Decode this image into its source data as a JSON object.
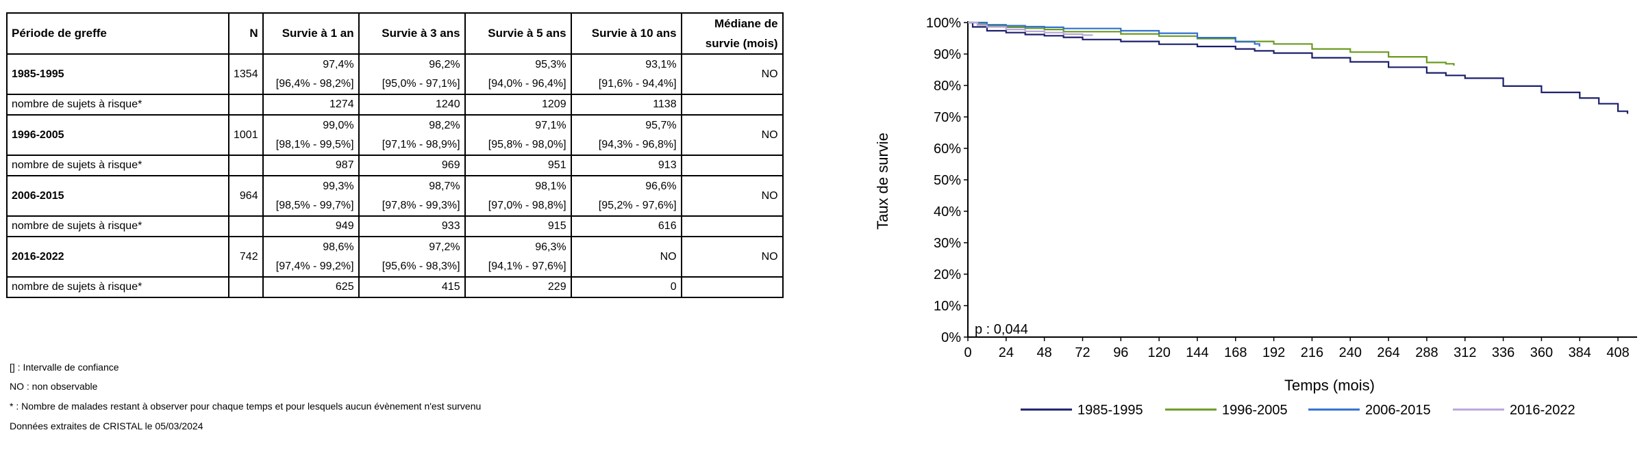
{
  "table": {
    "headers": [
      "Période de greffe",
      "N",
      "Survie à 1 an",
      "Survie à 3 ans",
      "Survie à 5 ans",
      "Survie à 10 ans"
    ],
    "median_header_line1": "Médiane de",
    "median_header_line2": "survie (mois)",
    "risk_label": "nombre de sujets à risque*",
    "groups": [
      {
        "period": "1985-1995",
        "n": "1354",
        "survival": [
          {
            "value": "97,4%",
            "ci": "[96,4% - 98,2%]"
          },
          {
            "value": "96,2%",
            "ci": "[95,0% - 97,1%]"
          },
          {
            "value": "95,3%",
            "ci": "[94,0% - 96,4%]"
          },
          {
            "value": "93,1%",
            "ci": "[91,6% - 94,4%]"
          }
        ],
        "median": "NO",
        "at_risk": [
          "1274",
          "1240",
          "1209",
          "1138"
        ]
      },
      {
        "period": "1996-2005",
        "n": "1001",
        "survival": [
          {
            "value": "99,0%",
            "ci": "[98,1% - 99,5%]"
          },
          {
            "value": "98,2%",
            "ci": "[97,1% - 98,9%]"
          },
          {
            "value": "97,1%",
            "ci": "[95,8% - 98,0%]"
          },
          {
            "value": "95,7%",
            "ci": "[94,3% - 96,8%]"
          }
        ],
        "median": "NO",
        "at_risk": [
          "987",
          "969",
          "951",
          "913"
        ]
      },
      {
        "period": "2006-2015",
        "n": "964",
        "survival": [
          {
            "value": "99,3%",
            "ci": "[98,5% - 99,7%]"
          },
          {
            "value": "98,7%",
            "ci": "[97,8% - 99,3%]"
          },
          {
            "value": "98,1%",
            "ci": "[97,0% - 98,8%]"
          },
          {
            "value": "96,6%",
            "ci": "[95,2% - 97,6%]"
          }
        ],
        "median": "NO",
        "at_risk": [
          "949",
          "933",
          "915",
          "616"
        ]
      },
      {
        "period": "2016-2022",
        "n": "742",
        "survival": [
          {
            "value": "98,6%",
            "ci": "[97,4% - 99,2%]"
          },
          {
            "value": "97,2%",
            "ci": "[95,6% - 98,3%]"
          },
          {
            "value": "96,3%",
            "ci": "[94,1% - 97,6%]"
          },
          {
            "value": "NO",
            "ci": ""
          }
        ],
        "median": "NO",
        "at_risk": [
          "625",
          "415",
          "229",
          "0"
        ]
      }
    ]
  },
  "footnotes": [
    "[] : Intervalle de confiance",
    "NO : non observable",
    "* : Nombre de malades restant à observer pour chaque temps et pour lesquels aucun évènement n'est survenu",
    "Données extraites de CRISTAL le 05/03/2024"
  ],
  "chart_data": {
    "type": "line",
    "xlabel": "Temps (mois)",
    "ylabel": "Taux de survie",
    "xlim": [
      0,
      420
    ],
    "ylim": [
      0,
      100
    ],
    "xticks": [
      0,
      24,
      48,
      72,
      96,
      120,
      144,
      168,
      192,
      216,
      240,
      264,
      288,
      312,
      336,
      360,
      384,
      408
    ],
    "yticks": [
      0,
      10,
      20,
      30,
      40,
      50,
      60,
      70,
      80,
      90,
      100
    ],
    "ytick_labels": [
      "0%",
      "10%",
      "20%",
      "30%",
      "40%",
      "50%",
      "60%",
      "70%",
      "80%",
      "90%",
      "100%"
    ],
    "annotation": "p : 0,044",
    "legend_position": "bottom",
    "series": [
      {
        "name": "1985-1995",
        "color": "#1b1f6b",
        "points": [
          [
            0,
            100
          ],
          [
            3,
            98.6
          ],
          [
            12,
            97.4
          ],
          [
            24,
            96.8
          ],
          [
            36,
            96.2
          ],
          [
            48,
            95.8
          ],
          [
            60,
            95.3
          ],
          [
            72,
            94.6
          ],
          [
            96,
            94.0
          ],
          [
            120,
            93.1
          ],
          [
            144,
            92.4
          ],
          [
            168,
            91.6
          ],
          [
            180,
            91.0
          ],
          [
            192,
            90.3
          ],
          [
            216,
            88.8
          ],
          [
            240,
            87.5
          ],
          [
            264,
            85.8
          ],
          [
            288,
            84.0
          ],
          [
            300,
            83.2
          ],
          [
            312,
            82.3
          ],
          [
            336,
            79.8
          ],
          [
            360,
            77.8
          ],
          [
            384,
            76.0
          ],
          [
            396,
            74.2
          ],
          [
            408,
            71.8
          ],
          [
            414,
            71.0
          ]
        ]
      },
      {
        "name": "1996-2005",
        "color": "#6a9a1f",
        "points": [
          [
            0,
            100
          ],
          [
            6,
            99.5
          ],
          [
            12,
            99.0
          ],
          [
            24,
            98.5
          ],
          [
            36,
            98.2
          ],
          [
            48,
            97.8
          ],
          [
            60,
            97.1
          ],
          [
            96,
            96.4
          ],
          [
            120,
            95.7
          ],
          [
            144,
            94.9
          ],
          [
            168,
            94.0
          ],
          [
            192,
            93.2
          ],
          [
            216,
            91.6
          ],
          [
            240,
            90.6
          ],
          [
            264,
            89.1
          ],
          [
            288,
            87.3
          ],
          [
            300,
            86.9
          ],
          [
            305,
            86.3
          ]
        ]
      },
      {
        "name": "2006-2015",
        "color": "#2f6fcf",
        "points": [
          [
            0,
            100
          ],
          [
            12,
            99.3
          ],
          [
            24,
            99.0
          ],
          [
            36,
            98.7
          ],
          [
            48,
            98.5
          ],
          [
            60,
            98.1
          ],
          [
            96,
            97.4
          ],
          [
            120,
            96.6
          ],
          [
            144,
            95.2
          ],
          [
            168,
            93.9
          ],
          [
            180,
            93.2
          ],
          [
            183,
            92.4
          ]
        ]
      },
      {
        "name": "2016-2022",
        "color": "#b9a5dc",
        "points": [
          [
            0,
            100
          ],
          [
            6,
            99.2
          ],
          [
            12,
            98.6
          ],
          [
            24,
            97.8
          ],
          [
            36,
            97.2
          ],
          [
            48,
            96.8
          ],
          [
            60,
            96.3
          ],
          [
            72,
            96.0
          ],
          [
            78,
            95.8
          ]
        ]
      }
    ]
  }
}
